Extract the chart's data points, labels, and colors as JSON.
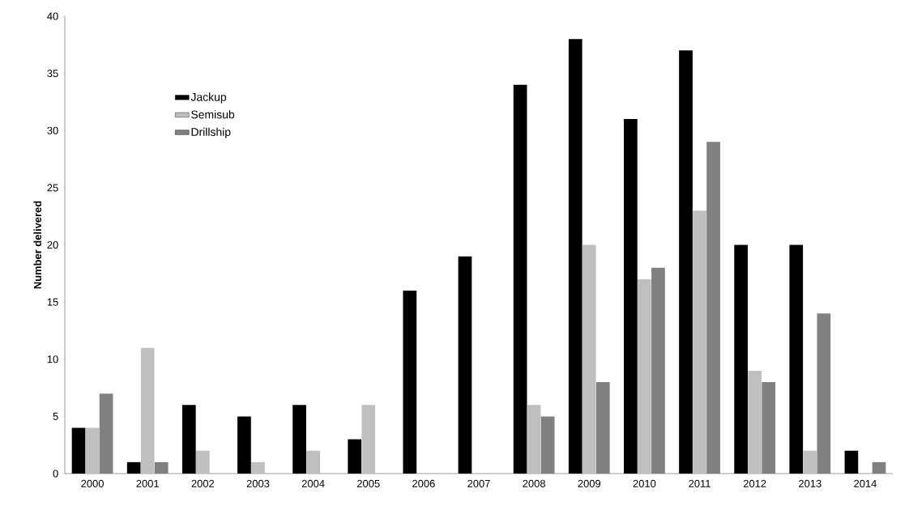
{
  "chart_data": {
    "type": "bar",
    "ylabel": "Number delivered",
    "categories": [
      "2000",
      "2001",
      "2002",
      "2003",
      "2004",
      "2005",
      "2006",
      "2007",
      "2008",
      "2009",
      "2010",
      "2011",
      "2012",
      "2013",
      "2014"
    ],
    "series": [
      {
        "name": "Jackup",
        "color": "#000000",
        "values": [
          4,
          1,
          6,
          5,
          6,
          3,
          16,
          19,
          34,
          38,
          31,
          37,
          20,
          20,
          2
        ]
      },
      {
        "name": "Semisub",
        "color": "#bfbfbf",
        "values": [
          4,
          11,
          2,
          1,
          2,
          6,
          0,
          0,
          6,
          20,
          17,
          23,
          9,
          2,
          0
        ]
      },
      {
        "name": "Drillship",
        "color": "#808080",
        "values": [
          7,
          1,
          0,
          0,
          0,
          0,
          0,
          0,
          5,
          8,
          18,
          29,
          8,
          14,
          1
        ]
      }
    ],
    "ylim": [
      0,
      40
    ],
    "yticks": [
      0,
      5,
      10,
      15,
      20,
      25,
      30,
      35,
      40
    ],
    "legend": "top left"
  }
}
